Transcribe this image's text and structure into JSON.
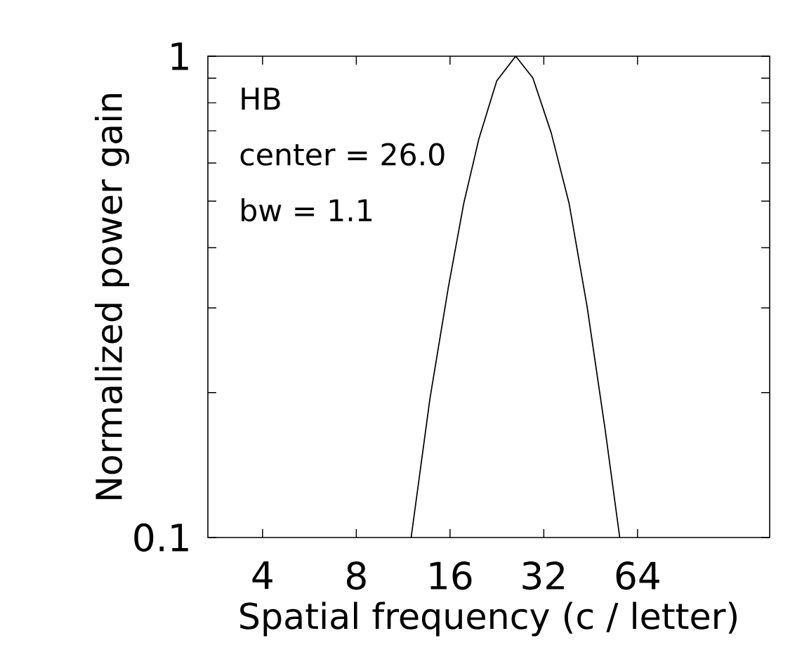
{
  "chart_data": {
    "type": "line",
    "xlabel": "Spatial frequency (c / letter)",
    "ylabel": "Normalized power gain",
    "log": "xy",
    "grid": false,
    "xlim": [
      2.67,
      170
    ],
    "ylim": [
      0.1,
      1
    ],
    "xticks": [
      4,
      8,
      16,
      32,
      64
    ],
    "yticks": [
      0.1,
      {
        "value": 0.2,
        "label": null
      },
      {
        "value": 0.3,
        "label": null
      },
      {
        "value": 0.4,
        "label": null
      },
      {
        "value": 0.5,
        "label": null
      },
      {
        "value": 0.6,
        "label": null
      },
      {
        "value": 0.7,
        "label": null
      },
      {
        "value": 0.8,
        "label": null
      },
      {
        "value": 0.9,
        "label": null
      },
      1
    ],
    "annotations": [
      "HB",
      "center = 26.0",
      "bw  = 1.1"
    ],
    "series": [
      {
        "color": "#000000",
        "x": [
          12.0,
          13.8,
          15.8,
          17.7,
          19.8,
          22.6,
          26.0,
          29.5,
          33.8,
          38.6,
          44.1,
          50.4,
          56.1
        ],
        "values": [
          0.1,
          0.195,
          0.331,
          0.494,
          0.673,
          0.889,
          1.0,
          0.902,
          0.693,
          0.494,
          0.301,
          0.167,
          0.1
        ]
      }
    ]
  }
}
